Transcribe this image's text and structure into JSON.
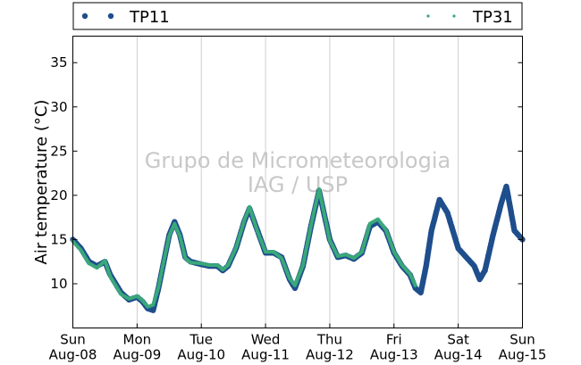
{
  "chart_data": {
    "type": "scatter",
    "ylabel": "Air temperature (°C)",
    "xlabel": "",
    "ylim": [
      5,
      38
    ],
    "xlim": [
      "2015-08-08",
      "2015-08-15"
    ],
    "yticks": [
      10,
      15,
      20,
      25,
      30,
      35
    ],
    "xticks": [
      {
        "day": "Sun",
        "date": "Aug-08"
      },
      {
        "day": "Mon",
        "date": "Aug-09"
      },
      {
        "day": "Tue",
        "date": "Aug-10"
      },
      {
        "day": "Wed",
        "date": "Aug-11"
      },
      {
        "day": "Thu",
        "date": "Aug-12"
      },
      {
        "day": "Fri",
        "date": "Aug-13"
      },
      {
        "day": "Sat",
        "date": "Aug-14"
      },
      {
        "day": "Sun",
        "date": "Aug-15"
      }
    ],
    "grid": {
      "x": true,
      "y": false
    },
    "legend_placement": "top (above plot, spanning width)",
    "watermark": [
      "Grupo de Micrometeorologia",
      "IAG / USP"
    ],
    "series": [
      {
        "name": "TP11",
        "color": "#1f4e8c",
        "marker": "large-dot",
        "x": [
          "2015-08-08 00:00",
          "2015-08-08 03:00",
          "2015-08-08 06:00",
          "2015-08-08 09:00",
          "2015-08-08 12:00",
          "2015-08-08 14:00",
          "2015-08-08 18:00",
          "2015-08-08 21:00",
          "2015-08-09 00:00",
          "2015-08-09 02:00",
          "2015-08-09 04:00",
          "2015-08-09 06:00",
          "2015-08-09 08:00",
          "2015-08-09 10:00",
          "2015-08-09 12:00",
          "2015-08-09 14:00",
          "2015-08-09 16:00",
          "2015-08-09 18:00",
          "2015-08-09 20:00",
          "2015-08-10 00:00",
          "2015-08-10 03:00",
          "2015-08-10 06:00",
          "2015-08-10 08:00",
          "2015-08-10 10:00",
          "2015-08-10 13:00",
          "2015-08-10 16:00",
          "2015-08-10 18:00",
          "2015-08-10 21:00",
          "2015-08-11 00:00",
          "2015-08-11 03:00",
          "2015-08-11 06:00",
          "2015-08-11 09:00",
          "2015-08-11 11:00",
          "2015-08-11 14:00",
          "2015-08-11 17:00",
          "2015-08-11 20:00",
          "2015-08-12 00:00",
          "2015-08-12 03:00",
          "2015-08-12 06:00",
          "2015-08-12 09:00",
          "2015-08-12 12:00",
          "2015-08-12 15:00",
          "2015-08-12 18:00",
          "2015-08-12 21:00",
          "2015-08-13 00:00",
          "2015-08-13 03:00",
          "2015-08-13 06:00",
          "2015-08-13 08:00",
          "2015-08-13 10:00",
          "2015-08-13 12:00",
          "2015-08-13 14:00",
          "2015-08-13 17:00",
          "2015-08-13 20:00",
          "2015-08-14 00:00",
          "2015-08-14 03:00",
          "2015-08-14 06:00",
          "2015-08-14 08:00",
          "2015-08-14 10:00",
          "2015-08-14 13:00",
          "2015-08-14 16:00",
          "2015-08-14 18:00",
          "2015-08-14 21:00",
          "2015-08-15 00:00"
        ],
        "y": [
          15.0,
          14.0,
          12.5,
          12.0,
          12.5,
          11.0,
          9.0,
          8.2,
          8.5,
          8.0,
          7.2,
          7.0,
          9.5,
          12.5,
          15.5,
          17.0,
          15.5,
          13.0,
          12.5,
          12.2,
          12.0,
          12.0,
          11.5,
          12.0,
          14.0,
          17.0,
          18.5,
          16.0,
          13.5,
          13.5,
          13.0,
          10.5,
          9.5,
          12.0,
          16.5,
          20.5,
          15.0,
          13.0,
          13.2,
          12.8,
          13.5,
          16.5,
          17.0,
          16.0,
          13.5,
          12.0,
          11.0,
          9.5,
          9.0,
          12.0,
          16.0,
          19.5,
          18.0,
          14.0,
          13.0,
          12.0,
          10.5,
          11.5,
          15.5,
          19.0,
          21.0,
          16.0,
          15.0
        ]
      },
      {
        "name": "TP31",
        "color": "#3aa87a",
        "marker": "small-dot",
        "x": [
          "2015-08-08 00:00",
          "2015-08-08 03:00",
          "2015-08-08 06:00",
          "2015-08-08 09:00",
          "2015-08-08 12:00",
          "2015-08-08 14:00",
          "2015-08-08 18:00",
          "2015-08-08 21:00",
          "2015-08-09 00:00",
          "2015-08-09 02:00",
          "2015-08-09 04:00",
          "2015-08-09 06:00",
          "2015-08-09 08:00",
          "2015-08-09 10:00",
          "2015-08-09 12:00",
          "2015-08-09 14:00",
          "2015-08-09 16:00",
          "2015-08-09 18:00",
          "2015-08-09 20:00",
          "2015-08-10 00:00",
          "2015-08-10 03:00",
          "2015-08-10 06:00",
          "2015-08-10 08:00",
          "2015-08-10 10:00",
          "2015-08-10 13:00",
          "2015-08-10 16:00",
          "2015-08-10 18:00",
          "2015-08-10 21:00",
          "2015-08-11 00:00",
          "2015-08-11 03:00",
          "2015-08-11 06:00",
          "2015-08-11 09:00",
          "2015-08-11 11:00",
          "2015-08-11 14:00",
          "2015-08-11 17:00",
          "2015-08-11 20:00",
          "2015-08-12 00:00",
          "2015-08-12 03:00",
          "2015-08-12 06:00",
          "2015-08-12 09:00",
          "2015-08-12 12:00",
          "2015-08-12 15:00",
          "2015-08-12 18:00",
          "2015-08-12 21:00",
          "2015-08-13 00:00",
          "2015-08-13 03:00",
          "2015-08-13 06:00",
          "2015-08-13 08:00"
        ],
        "y": [
          14.8,
          13.8,
          12.3,
          11.8,
          12.6,
          10.8,
          8.8,
          8.3,
          8.6,
          8.1,
          7.4,
          7.6,
          9.6,
          12.6,
          15.4,
          16.8,
          15.4,
          12.9,
          12.4,
          12.3,
          12.1,
          12.1,
          11.6,
          12.1,
          14.1,
          17.1,
          18.7,
          15.9,
          13.6,
          13.6,
          12.9,
          10.6,
          9.8,
          12.1,
          16.6,
          20.7,
          14.9,
          13.1,
          13.3,
          12.9,
          13.6,
          16.8,
          17.3,
          16.1,
          13.6,
          12.1,
          11.1,
          9.8
        ]
      }
    ]
  }
}
